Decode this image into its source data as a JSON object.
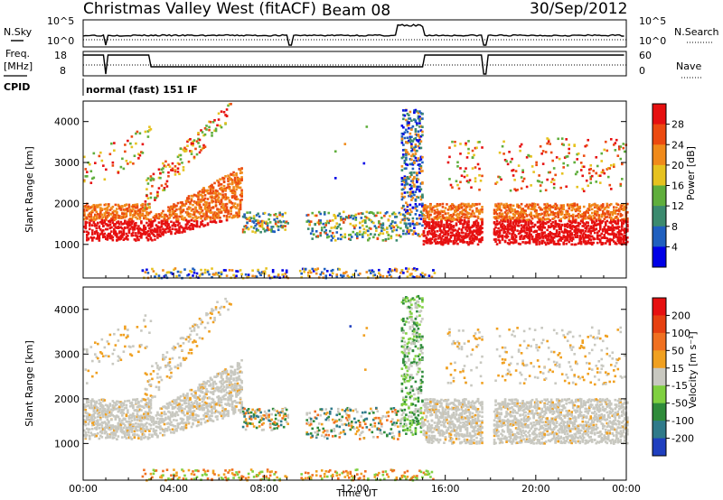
{
  "header": {
    "station": "Christmas Valley West (fitACF)",
    "beam": "Beam 08",
    "date": "30/Sep/2012"
  },
  "top_panels": {
    "left_labels": [
      "N.Sky",
      "Freq.",
      "[MHz]",
      "CPID"
    ],
    "right_labels": [
      "N.Search",
      "Nave"
    ],
    "noise_left_ticks": [
      "10^5",
      "10^0"
    ],
    "noise_right_ticks": [
      "10^5",
      "10^0"
    ],
    "freq_left_ticks": [
      "18",
      "8"
    ],
    "nave_right_ticks": [
      "60",
      "0"
    ],
    "cpid_text": "normal (fast) 151 IF"
  },
  "chart_data": [
    {
      "type": "heatmap",
      "panel": "power",
      "ylabel": "Slant Range [km]",
      "xlabel": "Time UT",
      "x_ticks": [
        "00:00",
        "04:00",
        "08:00",
        "12:00",
        "16:00",
        "20:00",
        "00:00"
      ],
      "y_ticks": [
        "1000",
        "2000",
        "3000",
        "4000"
      ],
      "ylim": [
        180,
        4500
      ],
      "xlim_hours": [
        0,
        24
      ],
      "colorbar": {
        "label": "Power [dB]",
        "ticks": [
          "4",
          "8",
          "12",
          "16",
          "20",
          "24",
          "28"
        ],
        "colors": [
          "#0000e6",
          "#1f5fbf",
          "#3b8a6e",
          "#5fae3c",
          "#e6c21f",
          "#f08a1a",
          "#ec4a10",
          "#e61010"
        ]
      }
    },
    {
      "type": "heatmap",
      "panel": "velocity",
      "ylabel": "Slant Range [km]",
      "xlabel": "Time UT",
      "x_ticks": [
        "00:00",
        "04:00",
        "08:00",
        "12:00",
        "16:00",
        "20:00",
        "00:00"
      ],
      "y_ticks": [
        "1000",
        "2000",
        "3000",
        "4000"
      ],
      "ylim": [
        180,
        4500
      ],
      "xlim_hours": [
        0,
        24
      ],
      "colorbar": {
        "label": "Velocity [m s⁻¹]",
        "ticks": [
          "200",
          "100",
          "50",
          "15",
          "-15",
          "-50",
          "-100",
          "-200"
        ],
        "colors": [
          "#1f3fbf",
          "#2f7a8a",
          "#2e8b3a",
          "#7fd040",
          "#c8c8c0",
          "#f0a020",
          "#f07020",
          "#e64010",
          "#e61010"
        ]
      }
    }
  ],
  "bottom_axis": {
    "label": "Time UT"
  }
}
